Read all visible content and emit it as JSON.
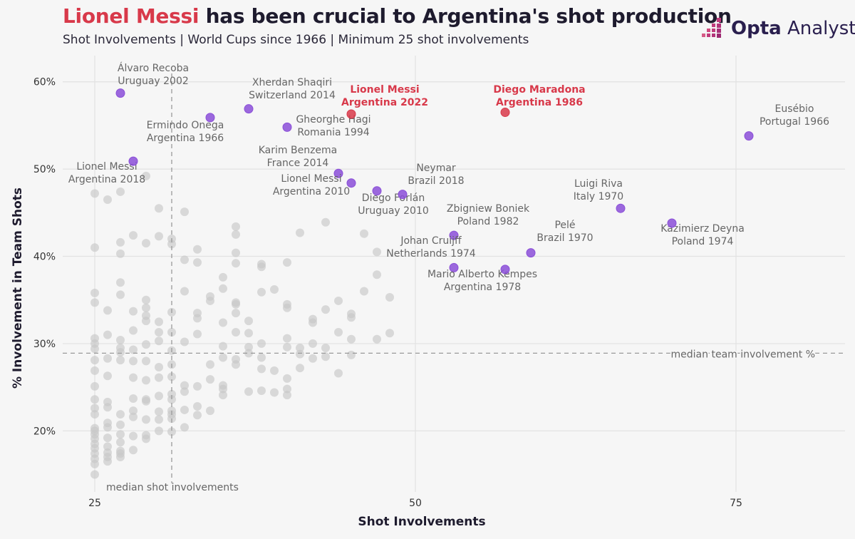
{
  "header": {
    "title_highlight": "Lionel Messi",
    "title_rest": " has been crucial to Argentina's shot production",
    "subtitle": "Shot Involvements | World Cups since 1966 | Minimum 25 shot involvements"
  },
  "brand": {
    "name_bold": "Opta",
    "name_light": " Analyst",
    "color": "#2a1f4e",
    "accent": "#c03c7c"
  },
  "colors": {
    "highlight": "#d8394a",
    "featured": "#8b4fd8",
    "other": "#c8c8c8",
    "text": "#1e1b2e",
    "annot": "#666666"
  },
  "chart_data": {
    "type": "scatter",
    "xlabel": "Shot Involvements",
    "ylabel": "% Involvement in Team Shots",
    "xlim": [
      22.5,
      83.5
    ],
    "ylim": [
      13,
      63
    ],
    "xticks": [
      25,
      50,
      75
    ],
    "xtick_labels": [
      "25",
      "50",
      "75"
    ],
    "yticks": [
      20,
      30,
      40,
      50,
      60
    ],
    "ytick_labels": [
      "20%",
      "30%",
      "40%",
      "50%",
      "60%"
    ],
    "grid": true,
    "reference_lines": [
      {
        "axis": "x",
        "value": 31.0,
        "label": "median shot involvements"
      },
      {
        "axis": "y",
        "value": 28.9,
        "label": "median team involvement %"
      }
    ],
    "highlighted": [
      {
        "name": "Lionel Messi",
        "edition": "Argentina 2022",
        "x": 45,
        "y": 56.3
      },
      {
        "name": "Diego Maradona",
        "edition": "Argentina 1986",
        "x": 57,
        "y": 56.5
      }
    ],
    "featured": [
      {
        "name": "Álvaro Recoba",
        "edition": "Uruguay 2002",
        "x": 27,
        "y": 58.7
      },
      {
        "name": "Xherdan Shaqiri",
        "edition": "Switzerland 2014",
        "x": 37,
        "y": 56.9
      },
      {
        "name": "Ermindo Onega",
        "edition": "Argentina 1966",
        "x": 34,
        "y": 55.9
      },
      {
        "name": "Gheorghe Hagi",
        "edition": "Romania 1994",
        "x": 40,
        "y": 54.8
      },
      {
        "name": "Eusébio",
        "edition": "Portugal 1966",
        "x": 76,
        "y": 53.8
      },
      {
        "name": "Lionel Messi",
        "edition": "Argentina 2018",
        "x": 28,
        "y": 50.9
      },
      {
        "name": "Karim Benzema",
        "edition": "France 2014",
        "x": 44,
        "y": 49.5
      },
      {
        "name": "Lionel Messi",
        "edition": "Argentina 2010",
        "x": 45,
        "y": 48.4
      },
      {
        "name": "Diego Forlán",
        "edition": "Uruguay 2010",
        "x": 47,
        "y": 47.5
      },
      {
        "name": "Neymar",
        "edition": "Brazil 2018",
        "x": 49,
        "y": 47.1
      },
      {
        "name": "Luigi Riva",
        "edition": "Italy 1970",
        "x": 66,
        "y": 45.5
      },
      {
        "name": "Kazimierz Deyna",
        "edition": "Poland 1974",
        "x": 70,
        "y": 43.8
      },
      {
        "name": "Zbigniew Boniek",
        "edition": "Poland 1982",
        "x": 53,
        "y": 42.4
      },
      {
        "name": "Pelé",
        "edition": "Brazil 1970",
        "x": 59,
        "y": 40.4
      },
      {
        "name": "Johan Cruijff",
        "edition": "Netherlands 1974",
        "x": 53,
        "y": 38.7
      },
      {
        "name": "Mario Alberto Kempes",
        "edition": "Argentina 1978",
        "x": 57,
        "y": 38.5
      }
    ],
    "others": [
      [
        25,
        47.2
      ],
      [
        25,
        41
      ],
      [
        25,
        35.8
      ],
      [
        25,
        34.7
      ],
      [
        25,
        30.6
      ],
      [
        25,
        30
      ],
      [
        25,
        29.4
      ],
      [
        25,
        28.1
      ],
      [
        25,
        26.9
      ],
      [
        25,
        25.1
      ],
      [
        25,
        23.6
      ],
      [
        25,
        22.6
      ],
      [
        25,
        21.9
      ],
      [
        25,
        20.3
      ],
      [
        25,
        20
      ],
      [
        25,
        19.6
      ],
      [
        25,
        19.1
      ],
      [
        25,
        18.5
      ],
      [
        25,
        18
      ],
      [
        25,
        17.4
      ],
      [
        25,
        16.8
      ],
      [
        25,
        16.2
      ],
      [
        25,
        15
      ],
      [
        26,
        46.5
      ],
      [
        26,
        33.8
      ],
      [
        26,
        31
      ],
      [
        26,
        28.3
      ],
      [
        26,
        26.3
      ],
      [
        26,
        23.3
      ],
      [
        26,
        22.7
      ],
      [
        26,
        20.9
      ],
      [
        26,
        20.4
      ],
      [
        26,
        19.2
      ],
      [
        26,
        18.2
      ],
      [
        26,
        17.5
      ],
      [
        26,
        17
      ],
      [
        26,
        16.5
      ],
      [
        27,
        47.4
      ],
      [
        27,
        41.6
      ],
      [
        27,
        40.3
      ],
      [
        27,
        37
      ],
      [
        27,
        35.6
      ],
      [
        27,
        30.4
      ],
      [
        27,
        29.5
      ],
      [
        27,
        29
      ],
      [
        27,
        28.1
      ],
      [
        27,
        21.9
      ],
      [
        27,
        20.7
      ],
      [
        27,
        19.6
      ],
      [
        27,
        18.7
      ],
      [
        27,
        17.7
      ],
      [
        27,
        17.4
      ],
      [
        27,
        17
      ],
      [
        28,
        42.4
      ],
      [
        28,
        33.7
      ],
      [
        28,
        31.5
      ],
      [
        28,
        29.3
      ],
      [
        28,
        28
      ],
      [
        28,
        26.1
      ],
      [
        28,
        23.7
      ],
      [
        28,
        22.3
      ],
      [
        28,
        21.6
      ],
      [
        28,
        19.4
      ],
      [
        28,
        17.8
      ],
      [
        29,
        49.2
      ],
      [
        29,
        41.5
      ],
      [
        29,
        35
      ],
      [
        29,
        34.1
      ],
      [
        29,
        33.2
      ],
      [
        29,
        32.6
      ],
      [
        29,
        29.9
      ],
      [
        29,
        28
      ],
      [
        29,
        25.8
      ],
      [
        29,
        23.6
      ],
      [
        29,
        23.4
      ],
      [
        29,
        21.3
      ],
      [
        29,
        19.5
      ],
      [
        29,
        19.1
      ],
      [
        30,
        45.5
      ],
      [
        30,
        42.3
      ],
      [
        30,
        32.5
      ],
      [
        30,
        31.3
      ],
      [
        30,
        30.3
      ],
      [
        30,
        27.3
      ],
      [
        30,
        26.1
      ],
      [
        30,
        24
      ],
      [
        30,
        22.2
      ],
      [
        30,
        21.3
      ],
      [
        30,
        20
      ],
      [
        31,
        42
      ],
      [
        31,
        41.4
      ],
      [
        31,
        33.6
      ],
      [
        31,
        31.3
      ],
      [
        31,
        29.2
      ],
      [
        31,
        27.6
      ],
      [
        31,
        26.2
      ],
      [
        31,
        24.2
      ],
      [
        31,
        23.6
      ],
      [
        31,
        22.3
      ],
      [
        31,
        21.9
      ],
      [
        31,
        21.4
      ],
      [
        31,
        19.9
      ],
      [
        32,
        45.1
      ],
      [
        32,
        39.6
      ],
      [
        32,
        36
      ],
      [
        32,
        30.2
      ],
      [
        32,
        25.2
      ],
      [
        32,
        24.5
      ],
      [
        32,
        22.4
      ],
      [
        32,
        20.4
      ],
      [
        33,
        40.8
      ],
      [
        33,
        39.3
      ],
      [
        33,
        33.5
      ],
      [
        33,
        32.9
      ],
      [
        33,
        31.1
      ],
      [
        33,
        25.1
      ],
      [
        33,
        22.8
      ],
      [
        33,
        21.8
      ],
      [
        34,
        35.4
      ],
      [
        34,
        34.9
      ],
      [
        34,
        27.6
      ],
      [
        34,
        25.9
      ],
      [
        34,
        22.3
      ],
      [
        35,
        37.6
      ],
      [
        35,
        36.3
      ],
      [
        35,
        32.4
      ],
      [
        35,
        29.7
      ],
      [
        35,
        28.4
      ],
      [
        35,
        25.2
      ],
      [
        35,
        24.8
      ],
      [
        35,
        24.1
      ],
      [
        36,
        43.4
      ],
      [
        36,
        42.5
      ],
      [
        36,
        40.4
      ],
      [
        36,
        39.2
      ],
      [
        36,
        34.7
      ],
      [
        36,
        34.5
      ],
      [
        36,
        33.5
      ],
      [
        36,
        31.3
      ],
      [
        36,
        28.2
      ],
      [
        36,
        27.6
      ],
      [
        37,
        32.6
      ],
      [
        37,
        31.2
      ],
      [
        37,
        29.6
      ],
      [
        37,
        28.9
      ],
      [
        37,
        24.5
      ],
      [
        38,
        39.1
      ],
      [
        38,
        38.8
      ],
      [
        38,
        35.9
      ],
      [
        38,
        30
      ],
      [
        38,
        28.4
      ],
      [
        38,
        27.1
      ],
      [
        38,
        24.6
      ],
      [
        39,
        36.2
      ],
      [
        39,
        26.9
      ],
      [
        39,
        24.4
      ],
      [
        40,
        39.3
      ],
      [
        40,
        34.5
      ],
      [
        40,
        34.1
      ],
      [
        40,
        30.6
      ],
      [
        40,
        29.6
      ],
      [
        40,
        26
      ],
      [
        40,
        24.8
      ],
      [
        40,
        24.1
      ],
      [
        41,
        42.7
      ],
      [
        41,
        29.5
      ],
      [
        41,
        28.8
      ],
      [
        41,
        27.2
      ],
      [
        42,
        32.8
      ],
      [
        42,
        32.4
      ],
      [
        42,
        30
      ],
      [
        42,
        28.3
      ],
      [
        43,
        43.9
      ],
      [
        43,
        33.9
      ],
      [
        43,
        29.5
      ],
      [
        43,
        28.5
      ],
      [
        44,
        34.9
      ],
      [
        44,
        31.3
      ],
      [
        44,
        26.6
      ],
      [
        45,
        33.4
      ],
      [
        45,
        33
      ],
      [
        45,
        30.5
      ],
      [
        45,
        28.7
      ],
      [
        46,
        42.6
      ],
      [
        46,
        36
      ],
      [
        47,
        40.5
      ],
      [
        47,
        37.9
      ],
      [
        47,
        30.5
      ],
      [
        48,
        35.3
      ],
      [
        48,
        31.2
      ]
    ]
  }
}
